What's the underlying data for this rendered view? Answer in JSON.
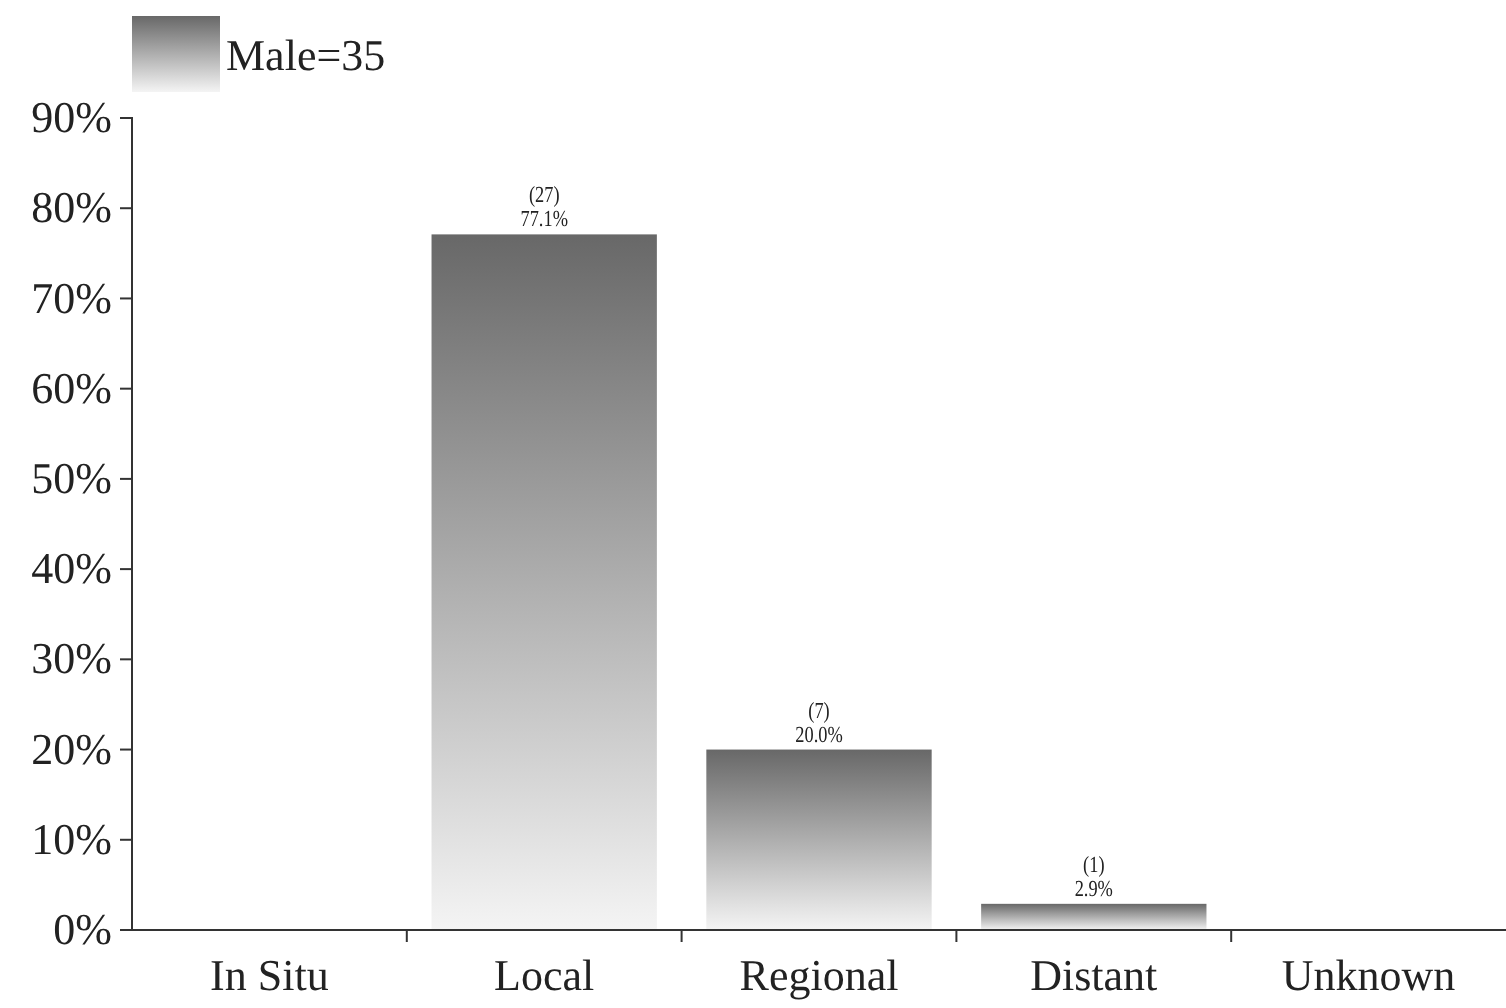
{
  "chart_data": {
    "type": "bar",
    "categories": [
      "In Situ",
      "Local",
      "Regional",
      "Distant",
      "Unknown"
    ],
    "series": [
      {
        "name": "Male=35",
        "color": "#8a8a8a",
        "values": [
          null,
          77.1,
          20.0,
          2.9,
          null
        ],
        "value_labels": [
          null,
          "(27)\n77.1%",
          "(7)\n20.0%",
          "(1)\n2.9%",
          null
        ]
      }
    ],
    "ylim": [
      0,
      90
    ],
    "yticks": [
      {
        "value": 0,
        "label": "0%"
      },
      {
        "value": 10,
        "label": "10%"
      },
      {
        "value": 20,
        "label": "20%"
      },
      {
        "value": 30,
        "label": "30%"
      },
      {
        "value": 40,
        "label": "40%"
      },
      {
        "value": 50,
        "label": "50%"
      },
      {
        "value": 60,
        "label": "60%"
      },
      {
        "value": 70,
        "label": "70%"
      },
      {
        "value": 80,
        "label": "80%"
      },
      {
        "value": 90,
        "label": "90%"
      }
    ],
    "grid": false,
    "legend": "top left"
  }
}
